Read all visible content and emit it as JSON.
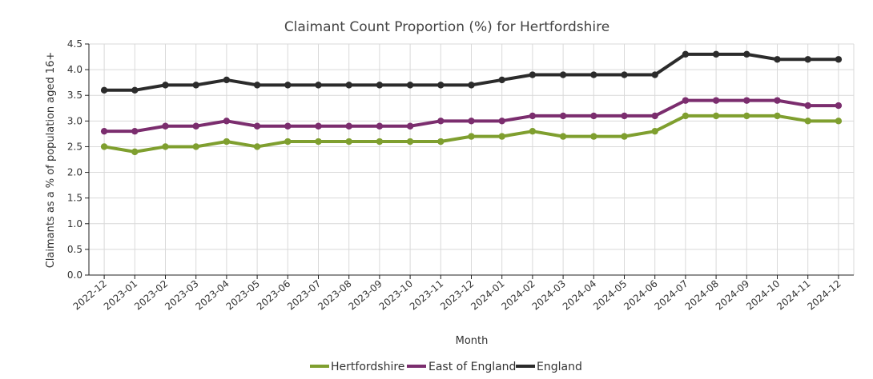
{
  "chart_data": {
    "type": "line",
    "title": "Claimant Count Proportion (%) for Hertfordshire",
    "xlabel": "Month",
    "ylabel": "Claimants as a % of population aged 16+",
    "ylim": [
      0,
      4.5
    ],
    "yticks": [
      "0.0",
      "0.5",
      "1.0",
      "1.5",
      "2.0",
      "2.5",
      "3.0",
      "3.5",
      "4.0",
      "4.5"
    ],
    "grid": true,
    "legend_position": "bottom",
    "categories": [
      "2022-12",
      "2023-01",
      "2023-02",
      "2023-03",
      "2023-04",
      "2023-05",
      "2023-06",
      "2023-07",
      "2023-08",
      "2023-09",
      "2023-10",
      "2023-11",
      "2023-12",
      "2024-01",
      "2024-02",
      "2024-03",
      "2024-04",
      "2024-05",
      "2024-06",
      "2024-07",
      "2024-08",
      "2024-09",
      "2024-10",
      "2024-11",
      "2024-12"
    ],
    "series": [
      {
        "name": "Hertfordshire",
        "color": "#7f9f2f",
        "values": [
          2.5,
          2.4,
          2.5,
          2.5,
          2.6,
          2.5,
          2.6,
          2.6,
          2.6,
          2.6,
          2.6,
          2.6,
          2.7,
          2.7,
          2.8,
          2.7,
          2.7,
          2.7,
          2.8,
          3.1,
          3.1,
          3.1,
          3.1,
          3.0,
          3.0
        ]
      },
      {
        "name": "East of England",
        "color": "#7b2d6e",
        "values": [
          2.8,
          2.8,
          2.9,
          2.9,
          3.0,
          2.9,
          2.9,
          2.9,
          2.9,
          2.9,
          2.9,
          3.0,
          3.0,
          3.0,
          3.1,
          3.1,
          3.1,
          3.1,
          3.1,
          3.4,
          3.4,
          3.4,
          3.4,
          3.3,
          3.3
        ]
      },
      {
        "name": "England",
        "color": "#2b2b2b",
        "values": [
          3.6,
          3.6,
          3.7,
          3.7,
          3.8,
          3.7,
          3.7,
          3.7,
          3.7,
          3.7,
          3.7,
          3.7,
          3.7,
          3.8,
          3.9,
          3.9,
          3.9,
          3.9,
          3.9,
          4.3,
          4.3,
          4.3,
          4.2,
          4.2,
          4.2
        ]
      }
    ]
  }
}
